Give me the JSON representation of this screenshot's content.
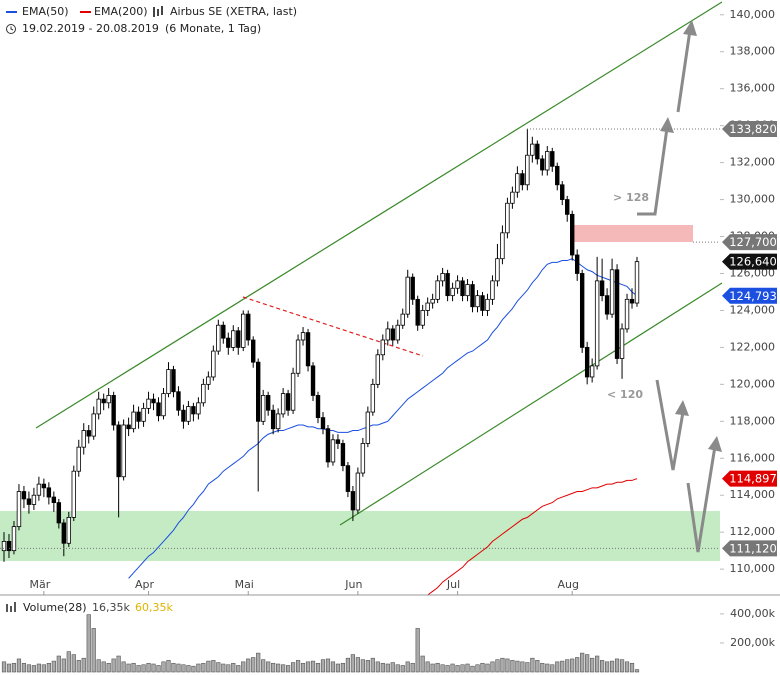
{
  "chart_data": {
    "type": "candlestick",
    "title": "Airbus SE (XETRA, last)",
    "subtitle": "19.02.2019 - 20.08.2019",
    "period": "(6 Monate, 1 Tag)",
    "up_color": "#ffffff",
    "down_color": "#000000",
    "categories": [
      null,
      null,
      null,
      null,
      null,
      null,
      null,
      null,
      "Mär",
      null,
      null,
      null,
      null,
      null,
      null,
      null,
      null,
      null,
      null,
      null,
      null,
      null,
      null,
      null,
      null,
      null,
      null,
      null,
      null,
      "Apr",
      null,
      null,
      null,
      null,
      null,
      null,
      null,
      null,
      null,
      null,
      null,
      null,
      null,
      null,
      null,
      null,
      null,
      null,
      null,
      "Mai",
      null,
      null,
      null,
      null,
      null,
      null,
      null,
      null,
      null,
      null,
      null,
      null,
      null,
      null,
      null,
      null,
      null,
      null,
      null,
      null,
      null,
      "Jun",
      null,
      null,
      null,
      null,
      null,
      null,
      null,
      null,
      null,
      null,
      null,
      null,
      null,
      null,
      null,
      null,
      null,
      null,
      null,
      "Jul",
      null,
      null,
      null,
      null,
      null,
      null,
      null,
      null,
      null,
      null,
      null,
      null,
      null,
      null,
      null,
      null,
      null,
      null,
      null,
      null,
      null,
      null,
      "Aug",
      null,
      null,
      null,
      null,
      null,
      null,
      null,
      null,
      null,
      null,
      null,
      null,
      null
    ],
    "ohlc": [
      [
        111.0,
        112.0,
        110.4,
        111.5
      ],
      [
        111.5,
        111.9,
        110.6,
        111.0
      ],
      [
        111.0,
        112.6,
        110.8,
        112.3
      ],
      [
        112.3,
        114.6,
        112.1,
        114.2
      ],
      [
        114.2,
        114.5,
        113.3,
        113.8
      ],
      [
        113.8,
        114.2,
        113.0,
        113.5
      ],
      [
        113.5,
        114.4,
        113.2,
        114.0
      ],
      [
        114.0,
        115.0,
        113.7,
        114.6
      ],
      [
        114.6,
        114.9,
        113.9,
        114.4
      ],
      [
        114.4,
        114.7,
        113.5,
        113.9
      ],
      [
        113.9,
        114.2,
        113.1,
        113.6
      ],
      [
        113.6,
        113.8,
        112.2,
        112.5
      ],
      [
        112.5,
        112.7,
        110.7,
        111.4
      ],
      [
        111.4,
        113.1,
        111.2,
        112.8
      ],
      [
        112.8,
        115.6,
        112.6,
        115.3
      ],
      [
        115.3,
        117.0,
        115.0,
        116.6
      ],
      [
        116.6,
        117.9,
        116.2,
        117.5
      ],
      [
        117.5,
        117.8,
        116.8,
        117.2
      ],
      [
        117.2,
        118.8,
        117.0,
        118.4
      ],
      [
        118.4,
        119.6,
        118.1,
        119.2
      ],
      [
        119.2,
        119.5,
        118.6,
        119.0
      ],
      [
        119.0,
        119.8,
        118.7,
        119.4
      ],
      [
        119.4,
        119.6,
        117.5,
        117.8
      ],
      [
        117.8,
        118.0,
        112.8,
        115.0
      ],
      [
        115.0,
        118.1,
        114.8,
        117.8
      ],
      [
        117.8,
        118.2,
        117.2,
        117.6
      ],
      [
        117.6,
        118.9,
        117.4,
        118.5
      ],
      [
        118.5,
        118.8,
        117.6,
        118.0
      ],
      [
        118.0,
        119.0,
        117.7,
        118.7
      ],
      [
        118.7,
        119.6,
        118.4,
        119.2
      ],
      [
        119.2,
        119.5,
        118.6,
        119.0
      ],
      [
        119.0,
        119.3,
        118.0,
        118.3
      ],
      [
        118.3,
        119.8,
        118.1,
        119.5
      ],
      [
        119.5,
        121.2,
        119.3,
        120.8
      ],
      [
        120.8,
        121.0,
        119.3,
        119.6
      ],
      [
        119.6,
        119.9,
        118.3,
        118.6
      ],
      [
        118.6,
        118.9,
        117.6,
        118.0
      ],
      [
        118.0,
        119.1,
        117.8,
        118.8
      ],
      [
        118.8,
        119.0,
        118.0,
        118.4
      ],
      [
        118.4,
        119.3,
        118.1,
        119.0
      ],
      [
        119.0,
        120.3,
        118.8,
        120.0
      ],
      [
        120.0,
        120.7,
        119.7,
        120.4
      ],
      [
        120.4,
        122.1,
        120.2,
        121.8
      ],
      [
        121.8,
        123.5,
        121.6,
        123.2
      ],
      [
        123.2,
        123.4,
        122.2,
        122.5
      ],
      [
        122.5,
        122.8,
        121.6,
        122.0
      ],
      [
        122.0,
        123.2,
        121.8,
        122.9
      ],
      [
        122.9,
        123.1,
        121.6,
        122.0
      ],
      [
        122.0,
        124.0,
        121.8,
        123.8
      ],
      [
        123.8,
        124.0,
        122.1,
        122.4
      ],
      [
        122.4,
        122.6,
        120.9,
        121.2
      ],
      [
        121.2,
        121.4,
        114.2,
        118.0
      ],
      [
        118.0,
        119.7,
        117.8,
        119.4
      ],
      [
        119.4,
        119.6,
        118.3,
        118.6
      ],
      [
        118.6,
        118.9,
        117.3,
        117.6
      ],
      [
        117.6,
        118.7,
        117.4,
        118.4
      ],
      [
        118.4,
        119.8,
        118.2,
        119.5
      ],
      [
        119.5,
        119.7,
        118.3,
        118.6
      ],
      [
        118.6,
        120.9,
        118.4,
        120.6
      ],
      [
        120.6,
        122.7,
        120.4,
        122.4
      ],
      [
        122.4,
        123.1,
        122.1,
        122.8
      ],
      [
        122.8,
        123.0,
        120.7,
        121.0
      ],
      [
        121.0,
        121.2,
        119.1,
        119.4
      ],
      [
        119.4,
        119.6,
        117.9,
        118.2
      ],
      [
        118.2,
        118.5,
        117.3,
        117.6
      ],
      [
        117.6,
        117.8,
        115.5,
        115.8
      ],
      [
        115.8,
        117.3,
        115.6,
        117.0
      ],
      [
        117.0,
        117.3,
        116.5,
        116.8
      ],
      [
        116.8,
        117.0,
        115.3,
        115.6
      ],
      [
        115.6,
        115.8,
        113.9,
        114.2
      ],
      [
        114.2,
        114.5,
        112.6,
        113.2
      ],
      [
        113.2,
        115.5,
        113.0,
        115.2
      ],
      [
        115.2,
        117.1,
        115.0,
        116.8
      ],
      [
        116.8,
        118.8,
        116.6,
        118.5
      ],
      [
        118.5,
        120.3,
        118.3,
        120.0
      ],
      [
        120.0,
        121.9,
        119.8,
        121.6
      ],
      [
        121.6,
        122.7,
        121.3,
        122.4
      ],
      [
        122.4,
        123.4,
        122.1,
        123.0
      ],
      [
        123.0,
        123.2,
        122.1,
        122.4
      ],
      [
        122.4,
        123.5,
        122.2,
        123.2
      ],
      [
        123.2,
        124.1,
        123.0,
        123.8
      ],
      [
        123.8,
        126.2,
        123.6,
        125.8
      ],
      [
        125.8,
        126.0,
        124.3,
        124.6
      ],
      [
        124.6,
        124.8,
        122.9,
        123.2
      ],
      [
        123.2,
        124.3,
        123.0,
        124.0
      ],
      [
        124.0,
        124.7,
        123.7,
        124.4
      ],
      [
        124.4,
        124.9,
        124.1,
        124.6
      ],
      [
        124.6,
        125.9,
        124.4,
        125.6
      ],
      [
        125.6,
        126.3,
        125.3,
        126.0
      ],
      [
        126.0,
        126.2,
        124.5,
        124.8
      ],
      [
        124.8,
        125.5,
        124.5,
        125.2
      ],
      [
        125.2,
        125.9,
        124.9,
        125.6
      ],
      [
        125.6,
        125.8,
        124.5,
        124.8
      ],
      [
        124.8,
        125.7,
        124.5,
        125.4
      ],
      [
        125.4,
        125.6,
        123.9,
        124.2
      ],
      [
        124.2,
        125.1,
        123.9,
        124.8
      ],
      [
        124.8,
        125.0,
        123.7,
        124.0
      ],
      [
        124.0,
        124.9,
        123.7,
        124.6
      ],
      [
        124.6,
        125.9,
        124.3,
        125.6
      ],
      [
        125.6,
        127.6,
        125.3,
        126.8
      ],
      [
        126.8,
        128.6,
        126.5,
        128.2
      ],
      [
        128.2,
        130.1,
        127.9,
        129.8
      ],
      [
        129.8,
        130.7,
        129.5,
        130.4
      ],
      [
        130.4,
        131.8,
        130.1,
        131.4
      ],
      [
        131.4,
        131.6,
        130.5,
        130.8
      ],
      [
        130.8,
        133.82,
        130.5,
        132.4
      ],
      [
        132.4,
        133.4,
        132.0,
        133.0
      ],
      [
        133.0,
        133.2,
        131.9,
        132.2
      ],
      [
        132.2,
        132.4,
        131.3,
        131.6
      ],
      [
        131.6,
        132.9,
        131.3,
        132.6
      ],
      [
        132.6,
        132.8,
        131.5,
        131.8
      ],
      [
        131.8,
        132.0,
        130.5,
        130.8
      ],
      [
        130.8,
        131.0,
        129.7,
        130.0
      ],
      [
        130.0,
        130.2,
        128.8,
        129.2
      ],
      [
        129.2,
        129.4,
        126.7,
        127.0
      ],
      [
        127.0,
        127.3,
        125.6,
        126.0
      ],
      [
        126.0,
        126.2,
        121.7,
        122.0
      ],
      [
        122.0,
        122.3,
        120.0,
        120.4
      ],
      [
        120.4,
        121.4,
        120.1,
        121.0
      ],
      [
        121.0,
        126.9,
        120.8,
        125.6
      ],
      [
        125.6,
        126.8,
        124.5,
        124.8
      ],
      [
        124.8,
        125.2,
        123.5,
        123.8
      ],
      [
        123.8,
        126.8,
        123.6,
        126.2
      ],
      [
        126.2,
        126.5,
        121.1,
        121.4
      ],
      [
        121.4,
        123.3,
        120.3,
        123.0
      ],
      [
        123.0,
        124.9,
        122.8,
        124.6
      ],
      [
        124.6,
        125.2,
        124.1,
        124.4
      ],
      [
        124.4,
        126.9,
        124.2,
        126.64
      ]
    ],
    "series": [
      {
        "name": "EMA(50)",
        "color": "#1a4fe0",
        "values": [
          null,
          null,
          null,
          null,
          null,
          null,
          null,
          null,
          null,
          null,
          null,
          null,
          null,
          null,
          null,
          null,
          null,
          null,
          null,
          null,
          null,
          null,
          null,
          null,
          null,
          109.5,
          109.8,
          110.1,
          110.4,
          110.7,
          110.9,
          111.2,
          111.5,
          111.8,
          112.1,
          112.5,
          112.8,
          113.2,
          113.5,
          113.9,
          114.2,
          114.6,
          114.8,
          115.0,
          115.3,
          115.5,
          115.7,
          115.9,
          116.1,
          116.4,
          116.6,
          116.8,
          117.1,
          117.3,
          117.4,
          117.5,
          117.5,
          117.6,
          117.7,
          117.8,
          117.8,
          117.7,
          117.7,
          117.6,
          117.6,
          117.5,
          117.5,
          117.4,
          117.4,
          117.4,
          117.5,
          117.5,
          117.6,
          117.7,
          117.8,
          117.8,
          117.9,
          118.0,
          118.3,
          118.6,
          118.9,
          119.2,
          119.4,
          119.6,
          119.8,
          120.0,
          120.2,
          120.4,
          120.6,
          120.9,
          121.1,
          121.3,
          121.5,
          121.7,
          121.8,
          122.0,
          122.2,
          122.4,
          122.8,
          123.1,
          123.5,
          123.8,
          124.1,
          124.5,
          124.8,
          125.1,
          125.5,
          125.8,
          126.2,
          126.5,
          126.6,
          126.6,
          126.7,
          126.7,
          126.8,
          126.6,
          126.4,
          126.2,
          126.1,
          125.9,
          125.8,
          125.7,
          125.6,
          125.5,
          125.4,
          125.3,
          125.0,
          124.793
        ]
      },
      {
        "name": "EMA(200)",
        "color": "#e00000",
        "values": [
          null,
          null,
          null,
          null,
          null,
          null,
          null,
          null,
          null,
          null,
          null,
          null,
          null,
          null,
          null,
          null,
          null,
          null,
          null,
          null,
          null,
          null,
          null,
          null,
          null,
          null,
          null,
          null,
          null,
          null,
          null,
          null,
          null,
          null,
          null,
          null,
          null,
          null,
          null,
          null,
          null,
          null,
          null,
          null,
          null,
          null,
          null,
          null,
          null,
          null,
          null,
          null,
          null,
          null,
          null,
          null,
          null,
          null,
          null,
          null,
          null,
          null,
          null,
          null,
          null,
          null,
          null,
          null,
          null,
          null,
          null,
          null,
          null,
          null,
          null,
          null,
          null,
          null,
          null,
          null,
          null,
          null,
          null,
          null,
          null,
          108.6,
          108.8,
          109.0,
          109.3,
          109.5,
          109.7,
          109.9,
          110.1,
          110.4,
          110.6,
          110.8,
          111.0,
          111.2,
          111.5,
          111.7,
          111.9,
          112.1,
          112.3,
          112.5,
          112.7,
          112.8,
          113.0,
          113.2,
          113.4,
          113.5,
          113.6,
          113.8,
          113.9,
          114.0,
          114.1,
          114.2,
          114.2,
          114.3,
          114.4,
          114.4,
          114.5,
          114.6,
          114.6,
          114.7,
          114.7,
          114.8,
          114.8,
          114.897
        ]
      }
    ],
    "ylim": [
      108.6,
      140.8
    ],
    "yticks": [
      {
        "value": 110,
        "label": "110,000"
      },
      {
        "value": 112,
        "label": "112,000"
      },
      {
        "value": 114,
        "label": "114,000"
      },
      {
        "value": 116,
        "label": "116,000"
      },
      {
        "value": 118,
        "label": "118,000"
      },
      {
        "value": 120,
        "label": "120,000"
      },
      {
        "value": 122,
        "label": "122,000"
      },
      {
        "value": 124,
        "label": "124,000"
      },
      {
        "value": 126,
        "label": "126,000"
      },
      {
        "value": 128,
        "label": "128,000"
      },
      {
        "value": 130,
        "label": "130,000"
      },
      {
        "value": 132,
        "label": "132,000"
      },
      {
        "value": 134,
        "label": "134,000"
      },
      {
        "value": 136,
        "label": "136,000"
      },
      {
        "value": 138,
        "label": "138,000"
      },
      {
        "value": 140,
        "label": "140,000"
      }
    ],
    "price_labels": [
      {
        "value": 133.82,
        "label": "133,820",
        "color": "#777777"
      },
      {
        "value": 127.7,
        "label": "127,700",
        "color": "#777777"
      },
      {
        "value": 126.64,
        "label": "126,640",
        "color": "#111111"
      },
      {
        "value": 124.793,
        "label": "124,793",
        "color": "#1a4fe0"
      },
      {
        "value": 114.897,
        "label": "114,897",
        "color": "#e00000"
      },
      {
        "value": 111.12,
        "label": "111,120",
        "color": "#777777"
      }
    ],
    "annotations": [
      "> 128",
      "< 120"
    ],
    "volume": {
      "name": "Volume(28)",
      "last_label": "16,35k",
      "avg_label": "60,35k",
      "avg_color": "#e0b400",
      "color": "#aaaaaa",
      "ylim": [
        0,
        420
      ],
      "yticks": [
        {
          "value": 200,
          "label": "200,00k"
        },
        {
          "value": 400,
          "label": "400,00k"
        }
      ],
      "values": [
        70,
        55,
        60,
        90,
        60,
        50,
        45,
        55,
        50,
        60,
        75,
        110,
        90,
        140,
        120,
        80,
        95,
        395,
        300,
        85,
        70,
        60,
        90,
        110,
        70,
        55,
        60,
        45,
        50,
        60,
        55,
        45,
        70,
        80,
        60,
        55,
        50,
        45,
        40,
        55,
        60,
        75,
        80,
        65,
        55,
        50,
        60,
        45,
        70,
        90,
        100,
        130,
        85,
        70,
        60,
        55,
        50,
        45,
        65,
        80,
        60,
        70,
        75,
        60,
        85,
        90,
        70,
        55,
        60,
        95,
        120,
        100,
        85,
        80,
        95,
        70,
        60,
        55,
        65,
        50,
        45,
        70,
        60,
        300,
        110,
        70,
        55,
        60,
        50,
        45,
        55,
        45,
        50,
        55,
        40,
        50,
        60,
        55,
        70,
        85,
        95,
        90,
        80,
        75,
        70,
        65,
        95,
        80,
        60,
        55,
        50,
        70,
        75,
        85,
        90,
        100,
        130,
        120,
        95,
        110,
        80,
        70,
        75,
        90,
        85,
        70,
        60,
        16.35
      ]
    }
  }
}
